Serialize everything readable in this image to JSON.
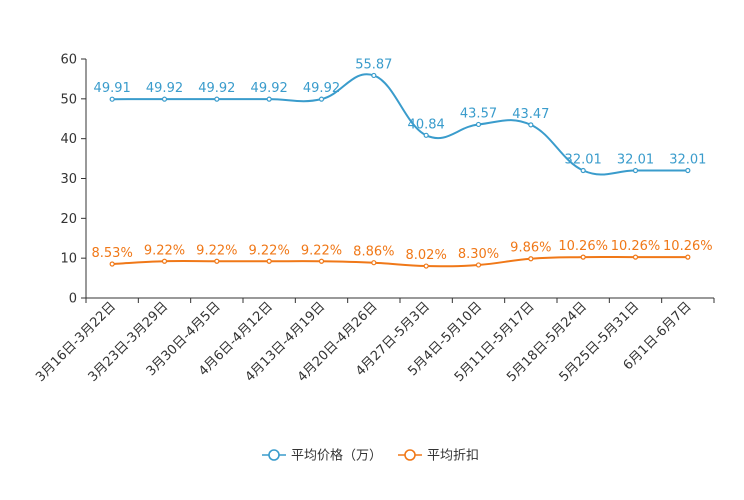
{
  "chart_data": {
    "type": "line",
    "categories": [
      "3月16日-3月22日",
      "3月23日-3月29日",
      "3月30日-4月5日",
      "4月6日-4月12日",
      "4月13日-4月19日",
      "4月20日-4月26日",
      "4月27日-5月3日",
      "5月4日-5月10日",
      "5月11日-5月17日",
      "5月18日-5月24日",
      "5月25日-5月31日",
      "6月1日-6月7日"
    ],
    "ylim": [
      0,
      60
    ],
    "yticks": [
      "0",
      "10",
      "20",
      "30",
      "40",
      "50",
      "60"
    ],
    "grid": false,
    "legend_position": "bottom-center",
    "series": [
      {
        "name": "平均价格（万）",
        "color": "#3a9ccc",
        "values": [
          49.91,
          49.92,
          49.92,
          49.92,
          49.92,
          55.87,
          40.84,
          43.57,
          43.47,
          32.01,
          32.01,
          32.01
        ],
        "labels": [
          "49.91",
          "49.92",
          "49.92",
          "49.92",
          "49.92",
          "55.87",
          "40.84",
          "43.57",
          "43.47",
          "32.01",
          "32.01",
          "32.01"
        ]
      },
      {
        "name": "平均折扣",
        "color": "#f07818",
        "values": [
          8.53,
          9.22,
          9.22,
          9.22,
          9.22,
          8.86,
          8.02,
          8.3,
          9.86,
          10.26,
          10.26,
          10.26
        ],
        "labels": [
          "8.53%",
          "9.22%",
          "9.22%",
          "9.22%",
          "9.22%",
          "8.86%",
          "8.02%",
          "8.30%",
          "9.86%",
          "10.26%",
          "10.26%",
          "10.26%"
        ]
      }
    ]
  }
}
